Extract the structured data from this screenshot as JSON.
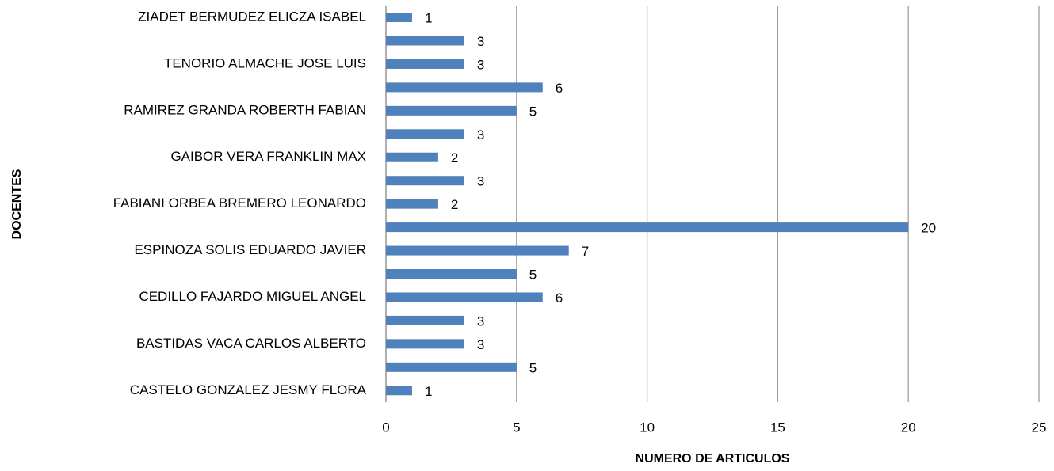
{
  "chart_data": {
    "type": "bar",
    "orientation": "horizontal",
    "xlabel": "NUMERO DE ARTICULOS",
    "ylabel": "DOCENTES",
    "categories": [
      "CASTELO GONZALEZ JESMY FLORA",
      null,
      "BASTIDAS VACA CARLOS ALBERTO",
      null,
      "CEDILLO FAJARDO MIGUEL ANGEL",
      null,
      "ESPINOZA SOLIS EDUARDO JAVIER",
      null,
      "FABIANI ORBEA BREMERO LEONARDO",
      null,
      "GAIBOR VERA FRANKLIN MAX",
      null,
      "RAMIREZ GRANDA ROBERTH FABIAN",
      null,
      "TENORIO ALMACHE JOSE LUIS",
      null,
      "ZIADET BERMUDEZ ELICZA ISABEL"
    ],
    "values": [
      1,
      5,
      3,
      3,
      6,
      5,
      7,
      20,
      2,
      3,
      2,
      3,
      5,
      6,
      3,
      3,
      1
    ],
    "color": "#4f81bd",
    "xlim": [
      0,
      25
    ],
    "xticks": [
      0,
      5,
      10,
      15,
      20,
      25
    ],
    "grid": true
  }
}
